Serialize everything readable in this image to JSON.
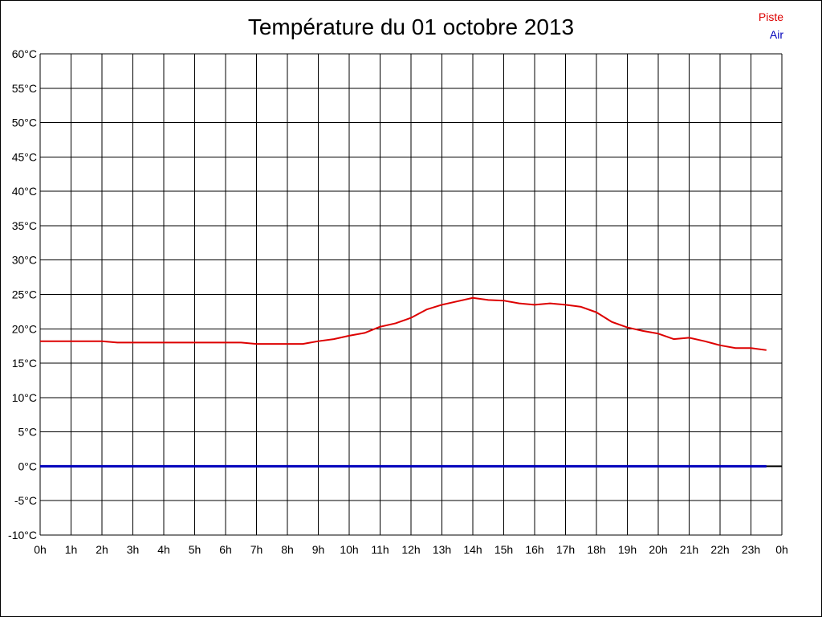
{
  "chart_data": {
    "type": "line",
    "title": "Température du 01 octobre 2013",
    "xlabel": "",
    "ylabel": "",
    "ylim": [
      -10,
      60
    ],
    "xlim": [
      0,
      24
    ],
    "y_ticks": [
      "-10°C",
      "-5°C",
      "0°C",
      "5°C",
      "10°C",
      "15°C",
      "20°C",
      "25°C",
      "30°C",
      "35°C",
      "40°C",
      "45°C",
      "50°C",
      "55°C",
      "60°C"
    ],
    "y_tick_values": [
      -10,
      -5,
      0,
      5,
      10,
      15,
      20,
      25,
      30,
      35,
      40,
      45,
      50,
      55,
      60
    ],
    "x_ticks": [
      "0h",
      "1h",
      "2h",
      "3h",
      "4h",
      "5h",
      "6h",
      "7h",
      "8h",
      "9h",
      "10h",
      "11h",
      "12h",
      "13h",
      "14h",
      "15h",
      "16h",
      "17h",
      "18h",
      "19h",
      "20h",
      "21h",
      "22h",
      "23h",
      "0h"
    ],
    "grid": true,
    "legend_position": "top-right",
    "series": [
      {
        "name": "Piste",
        "color": "#dd0000",
        "points": [
          [
            0,
            18.2
          ],
          [
            0.5,
            18.2
          ],
          [
            1,
            18.2
          ],
          [
            1.5,
            18.2
          ],
          [
            2,
            18.2
          ],
          [
            2.5,
            18.0
          ],
          [
            3,
            18.0
          ],
          [
            3.5,
            18.0
          ],
          [
            4,
            18.0
          ],
          [
            4.5,
            18.0
          ],
          [
            5,
            18.0
          ],
          [
            5.5,
            18.0
          ],
          [
            6,
            18.0
          ],
          [
            6.5,
            18.0
          ],
          [
            7,
            17.8
          ],
          [
            7.5,
            17.8
          ],
          [
            8,
            17.8
          ],
          [
            8.5,
            17.8
          ],
          [
            9,
            18.2
          ],
          [
            9.5,
            18.5
          ],
          [
            10,
            19.0
          ],
          [
            10.5,
            19.4
          ],
          [
            11,
            20.3
          ],
          [
            11.5,
            20.8
          ],
          [
            12,
            21.6
          ],
          [
            12.5,
            22.8
          ],
          [
            13,
            23.5
          ],
          [
            13.5,
            24.0
          ],
          [
            14,
            24.5
          ],
          [
            14.5,
            24.2
          ],
          [
            15,
            24.1
          ],
          [
            15.5,
            23.7
          ],
          [
            16,
            23.5
          ],
          [
            16.5,
            23.7
          ],
          [
            17,
            23.5
          ],
          [
            17.5,
            23.2
          ],
          [
            18,
            22.4
          ],
          [
            18.5,
            21.0
          ],
          [
            19,
            20.2
          ],
          [
            19.5,
            19.7
          ],
          [
            20,
            19.3
          ],
          [
            20.5,
            18.5
          ],
          [
            21,
            18.7
          ],
          [
            21.5,
            18.2
          ],
          [
            22,
            17.6
          ],
          [
            22.5,
            17.2
          ],
          [
            23,
            17.2
          ],
          [
            23.5,
            16.9
          ]
        ]
      },
      {
        "name": "Air",
        "color": "#0000bb",
        "points": [
          [
            0,
            0
          ],
          [
            1,
            0
          ],
          [
            2,
            0
          ],
          [
            3,
            0
          ],
          [
            4,
            0
          ],
          [
            5,
            0
          ],
          [
            6,
            0
          ],
          [
            7,
            0
          ],
          [
            8,
            0
          ],
          [
            9,
            0
          ],
          [
            10,
            0
          ],
          [
            11,
            0
          ],
          [
            12,
            0
          ],
          [
            13,
            0
          ],
          [
            14,
            0
          ],
          [
            15,
            0
          ],
          [
            16,
            0
          ],
          [
            17,
            0
          ],
          [
            18,
            0
          ],
          [
            19,
            0
          ],
          [
            20,
            0
          ],
          [
            21,
            0
          ],
          [
            22,
            0
          ],
          [
            23,
            0
          ],
          [
            23.5,
            0
          ]
        ]
      }
    ]
  }
}
